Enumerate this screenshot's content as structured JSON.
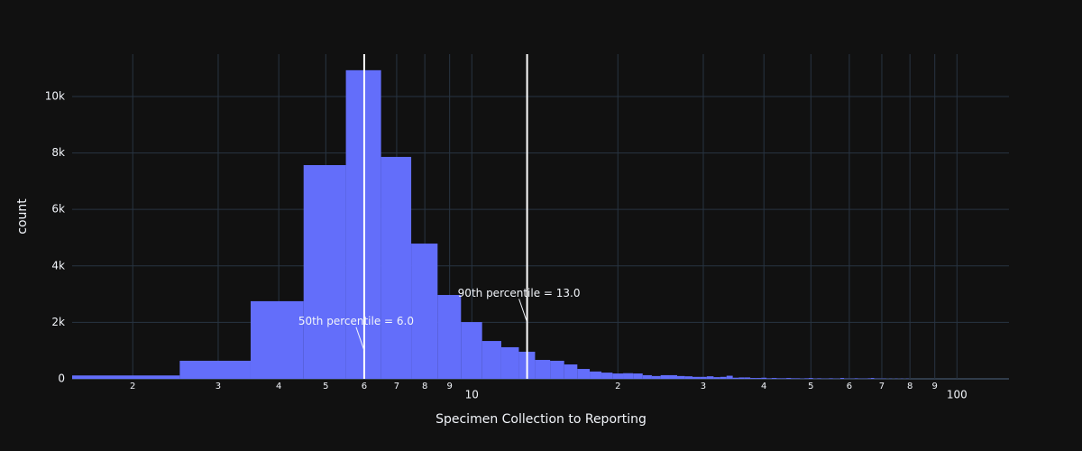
{
  "chart_data": {
    "type": "histogram",
    "x_label": "Specimen Collection to Reporting",
    "y_label": "count",
    "color": "#636efa",
    "x_log": true,
    "grid": true,
    "bins": [
      1.5,
      2.5,
      3.5,
      4.5,
      5.5,
      6.5,
      7.5,
      8.5,
      9.5,
      10.5,
      11.5,
      12.5,
      13.5,
      14.5,
      15.5,
      16.5,
      17.5,
      18.5,
      19.5,
      20.5,
      21.5,
      22.5,
      23.5,
      24.5,
      25.5,
      26.5,
      27.5,
      28.5,
      29.5,
      30.5,
      31.5,
      32.5,
      33.5,
      34.5,
      35.5,
      36.5,
      37.5,
      38.5,
      39.5,
      40.5,
      41.5,
      42.5,
      43.5,
      44.5,
      45.5,
      46.5,
      47.5,
      48.5,
      49.5,
      50.5,
      51.5,
      52.5,
      53.5,
      54.5,
      55.5,
      56.5,
      57.5,
      58.5,
      59.5,
      60.5,
      61.5,
      62.5,
      63.5,
      64.5,
      65.5,
      66.5,
      67.5,
      68.5,
      69.5,
      70.5,
      71.5,
      72.5,
      73.5,
      74.5,
      75.5,
      76.5,
      77.5,
      78.5,
      79.5,
      80.5
    ],
    "counts": [
      120,
      640,
      2750,
      7570,
      10930,
      7860,
      4790,
      2970,
      2010,
      1340,
      1120,
      960,
      670,
      640,
      510,
      350,
      260,
      220,
      190,
      200,
      190,
      130,
      100,
      130,
      130,
      100,
      90,
      70,
      70,
      90,
      60,
      70,
      110,
      40,
      50,
      50,
      30,
      30,
      40,
      20,
      30,
      20,
      20,
      30,
      20,
      20,
      10,
      20,
      30,
      10,
      20,
      10,
      10,
      20,
      10,
      10,
      30,
      10,
      10,
      10,
      20,
      10,
      10,
      10,
      20,
      30,
      10,
      10,
      10,
      10,
      0,
      10,
      0,
      10,
      0,
      10,
      0,
      10,
      0
    ],
    "xlim": [
      1.5,
      128
    ],
    "ylim": [
      0,
      11500
    ],
    "xticks": [
      2,
      3,
      4,
      5,
      6,
      7,
      8,
      9,
      10,
      {
        "value": 20,
        "label": "2"
      },
      {
        "value": 30,
        "label": "3"
      },
      {
        "value": 40,
        "label": "4"
      },
      {
        "value": 50,
        "label": "5"
      },
      {
        "value": 60,
        "label": "6"
      },
      {
        "value": 70,
        "label": "7"
      },
      {
        "value": 80,
        "label": "8"
      },
      {
        "value": 90,
        "label": "9"
      },
      100
    ],
    "yticks": [
      0,
      {
        "value": 2000,
        "label": "2k"
      },
      {
        "value": 4000,
        "label": "4k"
      },
      {
        "value": 6000,
        "label": "6k"
      },
      {
        "value": 8000,
        "label": "8k"
      },
      {
        "value": 10000,
        "label": "10k"
      }
    ],
    "vlines": [
      {
        "x": 6,
        "y": 1000,
        "label": "50th percentile = 6.0"
      },
      {
        "x": 13,
        "y": 2000,
        "label": "90th percentile = 13.0"
      }
    ]
  }
}
